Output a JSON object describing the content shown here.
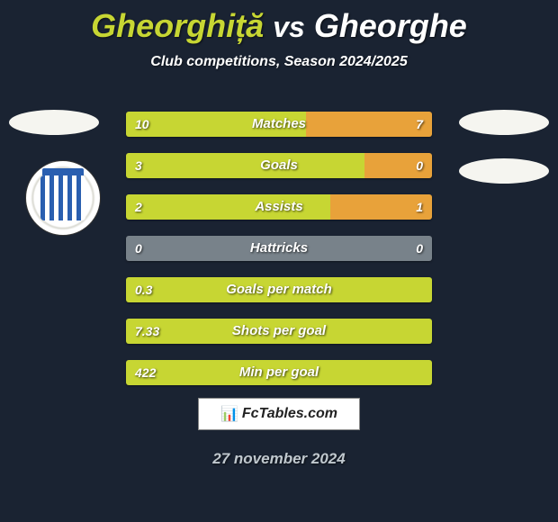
{
  "background_color": "#1a2332",
  "title": {
    "player1": "Gheorghiță",
    "vs": "vs",
    "player2": "Gheorghe",
    "player1_color": "#c7d633",
    "player2_color": "#ffffff"
  },
  "subtitle": "Club competitions, Season 2024/2025",
  "colors": {
    "left": "#c7d633",
    "right": "#e8a23a",
    "neutral": "#78828a",
    "label_text": "#ffffff"
  },
  "bars": [
    {
      "type": "split",
      "label": "Matches",
      "left_value": "10",
      "right_value": "7",
      "left_pct": 58.8,
      "right_pct": 41.2,
      "left_color": "#c7d633",
      "right_color": "#e8a23a"
    },
    {
      "type": "split",
      "label": "Goals",
      "left_value": "3",
      "right_value": "0",
      "left_pct": 78,
      "right_pct": 22,
      "left_color": "#c7d633",
      "right_color": "#e8a23a"
    },
    {
      "type": "split",
      "label": "Assists",
      "left_value": "2",
      "right_value": "1",
      "left_pct": 66.7,
      "right_pct": 33.3,
      "left_color": "#c7d633",
      "right_color": "#e8a23a"
    },
    {
      "type": "neutral",
      "label": "Hattricks",
      "left_value": "0",
      "right_value": "0",
      "fill_color": "#78828a"
    },
    {
      "type": "full-left",
      "label": "Goals per match",
      "left_value": "0.3",
      "right_value": "",
      "fill_color": "#c7d633"
    },
    {
      "type": "full-left",
      "label": "Shots per goal",
      "left_value": "7.33",
      "right_value": "",
      "fill_color": "#c7d633"
    },
    {
      "type": "full-left",
      "label": "Min per goal",
      "left_value": "422",
      "right_value": "",
      "fill_color": "#c7d633"
    }
  ],
  "watermark": "FcTables.com",
  "footer_date": "27 november 2024",
  "footer_color": "#c0c8ce"
}
